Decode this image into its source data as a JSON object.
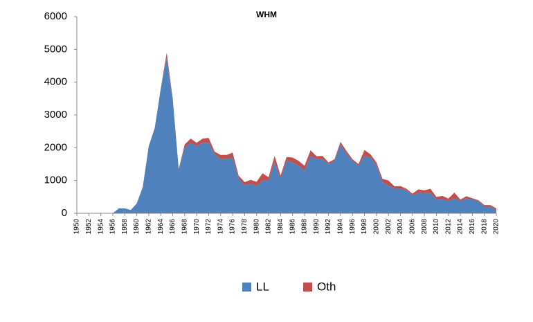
{
  "chart_data": {
    "type": "stacked_area",
    "title": "WHM",
    "x": [
      1950,
      1951,
      1952,
      1953,
      1954,
      1955,
      1956,
      1957,
      1958,
      1959,
      1960,
      1961,
      1962,
      1963,
      1964,
      1965,
      1966,
      1967,
      1968,
      1969,
      1970,
      1971,
      1972,
      1973,
      1974,
      1975,
      1976,
      1977,
      1978,
      1979,
      1980,
      1981,
      1982,
      1983,
      1984,
      1985,
      1986,
      1987,
      1988,
      1989,
      1990,
      1991,
      1992,
      1993,
      1994,
      1995,
      1996,
      1997,
      1998,
      1999,
      2000,
      2001,
      2002,
      2003,
      2004,
      2005,
      2006,
      2007,
      2008,
      2009,
      2010,
      2011,
      2012,
      2013,
      2014,
      2015,
      2016,
      2017,
      2018,
      2019,
      2020
    ],
    "series": [
      {
        "name": "LL",
        "color": "#4f81bd",
        "values": [
          0,
          0,
          0,
          0,
          0,
          0,
          0,
          150,
          150,
          100,
          300,
          800,
          2050,
          2600,
          3800,
          4750,
          3500,
          1350,
          2000,
          2150,
          2050,
          2150,
          2150,
          1800,
          1650,
          1650,
          1700,
          1050,
          850,
          900,
          830,
          1000,
          1000,
          1550,
          1050,
          1600,
          1550,
          1450,
          1300,
          1750,
          1650,
          1650,
          1500,
          1600,
          2100,
          1800,
          1600,
          1450,
          1750,
          1700,
          1450,
          950,
          850,
          750,
          750,
          700,
          550,
          620,
          620,
          620,
          420,
          420,
          380,
          450,
          380,
          450,
          420,
          370,
          200,
          200,
          100
        ]
      },
      {
        "name": "Oth",
        "color": "#c0504d",
        "values": [
          0,
          0,
          0,
          0,
          0,
          0,
          0,
          0,
          0,
          0,
          0,
          0,
          0,
          0,
          0,
          150,
          0,
          0,
          100,
          130,
          100,
          130,
          150,
          80,
          130,
          130,
          150,
          100,
          100,
          120,
          130,
          220,
          100,
          200,
          100,
          120,
          150,
          150,
          150,
          170,
          90,
          100,
          50,
          50,
          80,
          100,
          50,
          50,
          180,
          100,
          100,
          100,
          150,
          70,
          80,
          50,
          50,
          110,
          80,
          130,
          80,
          110,
          70,
          180,
          40,
          70,
          40,
          30,
          50,
          50,
          50
        ]
      }
    ],
    "xlim": [
      1950,
      2020
    ],
    "xticks": [
      1950,
      1952,
      1954,
      1956,
      1958,
      1960,
      1962,
      1964,
      1966,
      1968,
      1970,
      1972,
      1974,
      1976,
      1978,
      1980,
      1982,
      1984,
      1986,
      1988,
      1990,
      1992,
      1994,
      1996,
      1998,
      2000,
      2002,
      2004,
      2006,
      2008,
      2010,
      2012,
      2014,
      2016,
      2018,
      2020
    ],
    "ylim": [
      0,
      6000
    ],
    "yticks": [
      0,
      1000,
      2000,
      3000,
      4000,
      5000,
      6000
    ],
    "legend": "bottom"
  }
}
